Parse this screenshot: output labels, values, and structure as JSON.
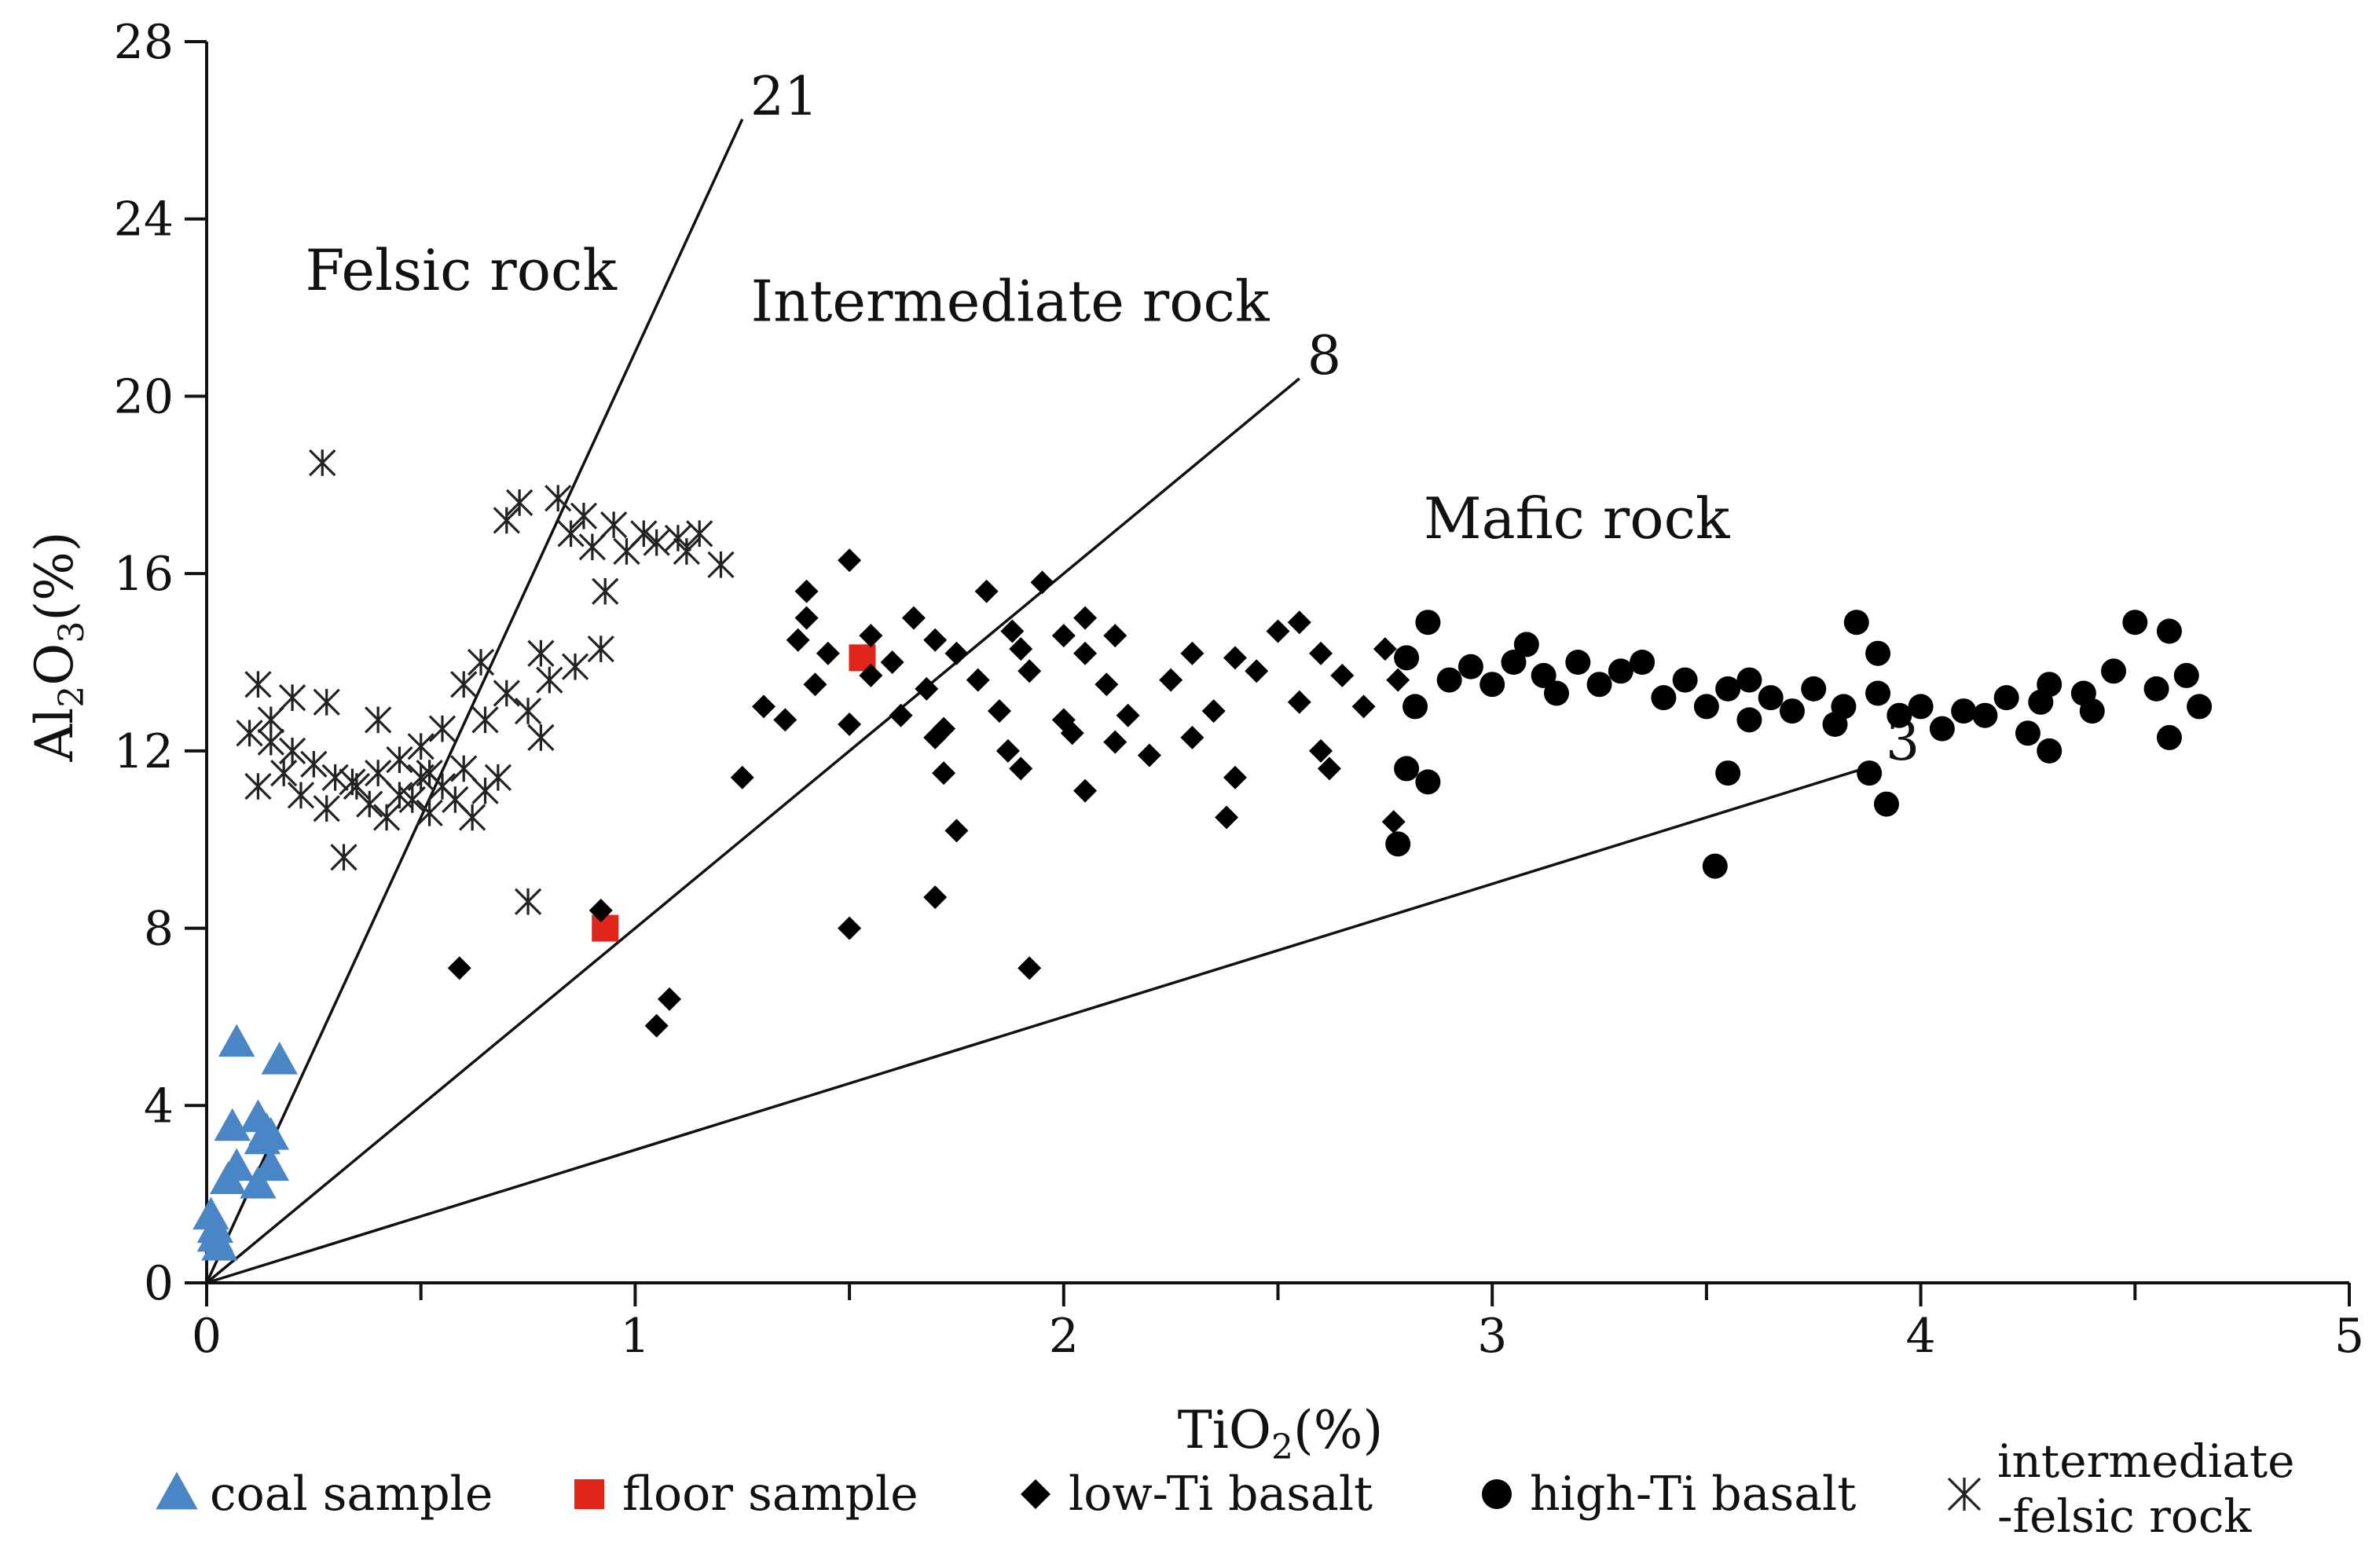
{
  "chart_data": {
    "type": "scatter",
    "x_axis": {
      "label_main": "TiO",
      "label_sub": "2",
      "label_tail": "(%)",
      "range": [
        0,
        5
      ],
      "ticks": [
        0,
        1,
        2,
        3,
        4,
        5
      ],
      "tick_labels": [
        "0",
        "1",
        "2",
        "3",
        "4",
        "5"
      ],
      "minor_step": 0.5
    },
    "y_axis": {
      "label_main": "Al",
      "label_sub1": "2",
      "label_mid": "O",
      "label_sub2": "3",
      "label_tail": "(%)",
      "range": [
        0,
        28
      ],
      "ticks": [
        0,
        4,
        8,
        12,
        16,
        20,
        24,
        28
      ],
      "tick_labels": [
        "0",
        "4",
        "8",
        "12",
        "16",
        "20",
        "24",
        "28"
      ]
    },
    "reference_lines": [
      {
        "ratio": 21,
        "label": "21",
        "x_end": 1.25
      },
      {
        "ratio": 8,
        "label": "8",
        "x_end": 2.55
      },
      {
        "ratio": 3,
        "label": "3",
        "x_end": 3.9
      }
    ],
    "region_labels": [
      {
        "text": "Felsic rock",
        "x": 0.23,
        "y": 22.4
      },
      {
        "text": "Intermediate rock",
        "x": 1.27,
        "y": 21.7
      },
      {
        "text": "Mafic rock",
        "x": 2.84,
        "y": 16.8
      }
    ],
    "series": [
      {
        "name": "coal sample",
        "marker": "triangle",
        "color": "#4a86c5",
        "points": [
          [
            0.07,
            5.4
          ],
          [
            0.17,
            5.0
          ],
          [
            0.06,
            3.5
          ],
          [
            0.12,
            3.7
          ],
          [
            0.14,
            3.4
          ],
          [
            0.15,
            3.3
          ],
          [
            0.13,
            3.2
          ],
          [
            0.07,
            2.6
          ],
          [
            0.05,
            2.3
          ],
          [
            0.12,
            2.2
          ],
          [
            0.15,
            2.6
          ],
          [
            0.01,
            1.5
          ],
          [
            0.02,
            1.2
          ],
          [
            0.02,
            1.0
          ],
          [
            0.03,
            0.8
          ]
        ]
      },
      {
        "name": "floor sample",
        "marker": "square",
        "color": "#e0251b",
        "points": [
          [
            1.53,
            14.1
          ],
          [
            0.93,
            8.0
          ]
        ]
      },
      {
        "name": "low-Ti basalt",
        "marker": "diamond",
        "color": "#000000",
        "points": [
          [
            1.5,
            16.3
          ],
          [
            1.4,
            15.6
          ],
          [
            1.82,
            15.6
          ],
          [
            1.95,
            15.8
          ],
          [
            1.4,
            15.0
          ],
          [
            1.65,
            15.0
          ],
          [
            2.05,
            15.0
          ],
          [
            2.55,
            14.9
          ],
          [
            1.38,
            14.5
          ],
          [
            1.55,
            14.6
          ],
          [
            1.7,
            14.5
          ],
          [
            1.88,
            14.7
          ],
          [
            2.0,
            14.6
          ],
          [
            2.12,
            14.6
          ],
          [
            2.5,
            14.7
          ],
          [
            1.45,
            14.2
          ],
          [
            1.6,
            14.0
          ],
          [
            1.75,
            14.2
          ],
          [
            1.9,
            14.3
          ],
          [
            2.05,
            14.2
          ],
          [
            2.3,
            14.2
          ],
          [
            2.4,
            14.1
          ],
          [
            2.6,
            14.2
          ],
          [
            2.75,
            14.3
          ],
          [
            1.3,
            13.0
          ],
          [
            1.42,
            13.5
          ],
          [
            1.55,
            13.7
          ],
          [
            1.68,
            13.4
          ],
          [
            1.8,
            13.6
          ],
          [
            1.92,
            13.8
          ],
          [
            2.1,
            13.5
          ],
          [
            2.25,
            13.6
          ],
          [
            2.45,
            13.8
          ],
          [
            2.65,
            13.7
          ],
          [
            2.78,
            13.6
          ],
          [
            1.35,
            12.7
          ],
          [
            1.5,
            12.6
          ],
          [
            1.62,
            12.8
          ],
          [
            1.72,
            12.5
          ],
          [
            1.85,
            12.9
          ],
          [
            2.0,
            12.7
          ],
          [
            2.15,
            12.8
          ],
          [
            2.35,
            12.9
          ],
          [
            2.55,
            13.1
          ],
          [
            2.7,
            13.0
          ],
          [
            1.7,
            12.3
          ],
          [
            1.87,
            12.0
          ],
          [
            2.02,
            12.4
          ],
          [
            2.12,
            12.2
          ],
          [
            2.3,
            12.3
          ],
          [
            2.6,
            12.0
          ],
          [
            1.72,
            11.5
          ],
          [
            1.9,
            11.6
          ],
          [
            2.05,
            11.1
          ],
          [
            2.2,
            11.9
          ],
          [
            2.4,
            11.4
          ],
          [
            2.62,
            11.6
          ],
          [
            1.25,
            11.4
          ],
          [
            1.75,
            10.2
          ],
          [
            2.38,
            10.5
          ],
          [
            2.77,
            10.4
          ],
          [
            1.5,
            8.0
          ],
          [
            1.7,
            8.7
          ],
          [
            0.92,
            8.4
          ],
          [
            1.92,
            7.1
          ],
          [
            0.59,
            7.1
          ],
          [
            1.08,
            6.4
          ],
          [
            1.05,
            5.8
          ]
        ]
      },
      {
        "name": "high-Ti basalt",
        "marker": "circle",
        "color": "#000000",
        "points": [
          [
            2.85,
            14.9
          ],
          [
            3.08,
            14.4
          ],
          [
            3.85,
            14.9
          ],
          [
            3.9,
            14.2
          ],
          [
            4.5,
            14.9
          ],
          [
            4.58,
            14.7
          ],
          [
            2.8,
            14.1
          ],
          [
            2.95,
            13.9
          ],
          [
            3.05,
            14.0
          ],
          [
            3.12,
            13.7
          ],
          [
            3.2,
            14.0
          ],
          [
            3.3,
            13.8
          ],
          [
            3.35,
            14.0
          ],
          [
            3.45,
            13.6
          ],
          [
            3.55,
            13.4
          ],
          [
            3.65,
            13.2
          ],
          [
            3.75,
            13.4
          ],
          [
            3.82,
            13.0
          ],
          [
            3.9,
            13.3
          ],
          [
            4.0,
            13.0
          ],
          [
            4.1,
            12.9
          ],
          [
            4.2,
            13.2
          ],
          [
            4.3,
            13.5
          ],
          [
            4.38,
            13.3
          ],
          [
            4.45,
            13.8
          ],
          [
            4.55,
            13.4
          ],
          [
            4.62,
            13.7
          ],
          [
            4.65,
            13.0
          ],
          [
            2.82,
            13.0
          ],
          [
            2.9,
            13.6
          ],
          [
            3.0,
            13.5
          ],
          [
            3.15,
            13.3
          ],
          [
            3.25,
            13.5
          ],
          [
            3.4,
            13.2
          ],
          [
            3.5,
            13.0
          ],
          [
            3.6,
            12.7
          ],
          [
            3.7,
            12.9
          ],
          [
            3.8,
            12.6
          ],
          [
            3.95,
            12.8
          ],
          [
            4.05,
            12.5
          ],
          [
            4.15,
            12.8
          ],
          [
            4.25,
            12.4
          ],
          [
            4.4,
            12.9
          ],
          [
            4.58,
            12.3
          ],
          [
            2.8,
            11.6
          ],
          [
            2.85,
            11.3
          ],
          [
            3.55,
            11.5
          ],
          [
            3.88,
            11.5
          ],
          [
            2.78,
            9.9
          ],
          [
            3.52,
            9.4
          ],
          [
            3.92,
            10.8
          ],
          [
            4.3,
            12.0
          ],
          [
            3.6,
            13.6
          ],
          [
            4.28,
            13.1
          ]
        ]
      },
      {
        "name": "intermediate\n-felsic rock",
        "marker": "asterisk",
        "color": "#222222",
        "points": [
          [
            0.27,
            18.5
          ],
          [
            0.73,
            17.6
          ],
          [
            0.82,
            17.7
          ],
          [
            0.7,
            17.2
          ],
          [
            0.88,
            17.3
          ],
          [
            0.95,
            17.1
          ],
          [
            1.02,
            16.9
          ],
          [
            1.1,
            16.8
          ],
          [
            0.9,
            16.6
          ],
          [
            0.98,
            16.5
          ],
          [
            1.05,
            16.7
          ],
          [
            1.12,
            16.5
          ],
          [
            1.15,
            16.9
          ],
          [
            1.2,
            16.2
          ],
          [
            0.85,
            16.9
          ],
          [
            0.93,
            15.6
          ],
          [
            0.92,
            14.3
          ],
          [
            0.64,
            14.0
          ],
          [
            0.78,
            14.2
          ],
          [
            0.6,
            13.5
          ],
          [
            0.7,
            13.3
          ],
          [
            0.8,
            13.6
          ],
          [
            0.86,
            13.9
          ],
          [
            0.12,
            13.5
          ],
          [
            0.28,
            13.1
          ],
          [
            0.4,
            12.7
          ],
          [
            0.75,
            12.9
          ],
          [
            0.55,
            12.5
          ],
          [
            0.65,
            12.7
          ],
          [
            0.5,
            12.1
          ],
          [
            0.78,
            12.3
          ],
          [
            0.1,
            12.4
          ],
          [
            0.15,
            12.2
          ],
          [
            0.2,
            12.0
          ],
          [
            0.25,
            11.7
          ],
          [
            0.3,
            11.4
          ],
          [
            0.35,
            11.2
          ],
          [
            0.4,
            11.5
          ],
          [
            0.45,
            11.0
          ],
          [
            0.5,
            11.4
          ],
          [
            0.55,
            11.2
          ],
          [
            0.6,
            11.6
          ],
          [
            0.65,
            11.1
          ],
          [
            0.12,
            11.2
          ],
          [
            0.18,
            11.5
          ],
          [
            0.22,
            11.0
          ],
          [
            0.28,
            10.7
          ],
          [
            0.34,
            11.3
          ],
          [
            0.38,
            10.8
          ],
          [
            0.42,
            10.5
          ],
          [
            0.48,
            10.9
          ],
          [
            0.52,
            10.6
          ],
          [
            0.58,
            10.9
          ],
          [
            0.62,
            10.5
          ],
          [
            0.32,
            9.6
          ],
          [
            0.75,
            8.6
          ],
          [
            0.15,
            12.7
          ],
          [
            0.45,
            11.8
          ],
          [
            0.52,
            11.5
          ],
          [
            0.68,
            11.4
          ],
          [
            0.2,
            13.2
          ]
        ]
      }
    ]
  }
}
